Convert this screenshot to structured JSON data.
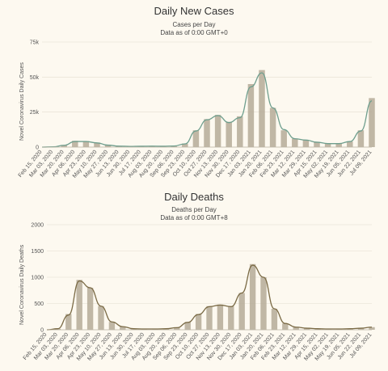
{
  "chart_data": [
    {
      "type": "bar",
      "title": "Daily New Cases",
      "subtitle_lines": [
        "Cases per Day",
        "Data as of 0:00 GMT+0"
      ],
      "ylabel": "Novel Coronavirus Daily Cases",
      "ylim": [
        0,
        75000
      ],
      "yticks": [
        0,
        25000,
        50000,
        75000
      ],
      "ytick_labels": [
        "0",
        "25k",
        "50k",
        "75k"
      ],
      "grid": true,
      "xtick_labels": [
        "Feb 15, 2020",
        "Mar 03, 2020",
        "Mar 20, 2020",
        "Apr 06, 2020",
        "Apr 23, 2020",
        "May 10, 2020",
        "May 27, 2020",
        "Jun 13, 2020",
        "Jun 30, 2020",
        "Jul 17, 2020",
        "Aug 03, 2020",
        "Aug 20, 2020",
        "Sep 06, 2020",
        "Sep 23, 2020",
        "Oct 10, 2020",
        "Oct 27, 2020",
        "Nov 13, 2020",
        "Nov 30, 2020",
        "Dec 17, 2020",
        "Jan 03, 2021",
        "Jan 20, 2021",
        "Feb 06, 2021",
        "Feb 23, 2021",
        "Mar 12, 2021",
        "Mar 29, 2021",
        "Apr 15, 2021",
        "May 02, 2021",
        "May 19, 2021",
        "Jun 05, 2021",
        "Jun 22, 2021",
        "Jul 09, 2021"
      ],
      "x": [
        "Feb 15, 2020",
        "Mar 03, 2020",
        "Mar 20, 2020",
        "Apr 06, 2020",
        "Apr 23, 2020",
        "May 10, 2020",
        "May 27, 2020",
        "Jun 13, 2020",
        "Jun 30, 2020",
        "Jul 17, 2020",
        "Aug 03, 2020",
        "Aug 20, 2020",
        "Sep 06, 2020",
        "Sep 23, 2020",
        "Oct 10, 2020",
        "Oct 27, 2020",
        "Nov 13, 2020",
        "Nov 30, 2020",
        "Dec 17, 2020",
        "Jan 03, 2021",
        "Jan 20, 2021",
        "Feb 06, 2021",
        "Feb 23, 2021",
        "Mar 12, 2021",
        "Mar 29, 2021",
        "Apr 15, 2021",
        "May 02, 2021",
        "May 19, 2021",
        "Jun 05, 2021",
        "Jun 22, 2021",
        "Jul 09, 2021"
      ],
      "series": [
        {
          "values": [
            0,
            200,
            1500,
            4500,
            4200,
            3200,
            1500,
            700,
            500,
            600,
            700,
            600,
            800,
            2500,
            12000,
            20000,
            23000,
            18000,
            22000,
            45000,
            55000,
            28000,
            12000,
            6000,
            5000,
            3500,
            2500,
            2500,
            4000,
            12000,
            35000
          ]
        },
        {
          "values": [
            0,
            200,
            1300,
            4000,
            4000,
            3000,
            1400,
            700,
            500,
            600,
            700,
            600,
            800,
            2300,
            11500,
            19500,
            22500,
            17500,
            21000,
            43000,
            53000,
            28000,
            12500,
            6000,
            5000,
            3500,
            2500,
            2500,
            4000,
            11500,
            33000
          ]
        }
      ],
      "colors": {
        "bars": "#b5ab98",
        "line": "#6e9e8d"
      }
    },
    {
      "type": "bar",
      "title": "Daily Deaths",
      "subtitle_lines": [
        "Deaths per Day",
        "Data as of 0:00 GMT+8"
      ],
      "ylabel": "Novel Coronavirus Daily Deaths",
      "ylim": [
        0,
        2000
      ],
      "yticks": [
        0,
        500,
        1000,
        1500,
        2000
      ],
      "ytick_labels": [
        "0",
        "500",
        "1000",
        "1500",
        "2000"
      ],
      "grid": true,
      "xtick_labels": [
        "Feb 15, 2020",
        "Mar 03, 2020",
        "Mar 20, 2020",
        "Apr 06, 2020",
        "Apr 23, 2020",
        "May 10, 2020",
        "May 27, 2020",
        "Jun 13, 2020",
        "Jun 30, 2020",
        "Jul 17, 2020",
        "Aug 03, 2020",
        "Aug 20, 2020",
        "Sep 06, 2020",
        "Sep 23, 2020",
        "Oct 10, 2020",
        "Oct 27, 2020",
        "Nov 13, 2020",
        "Nov 30, 2020",
        "Dec 17, 2020",
        "Jan 03, 2021",
        "Jan 20, 2021",
        "Feb 06, 2021",
        "Feb 23, 2021",
        "Mar 12, 2021",
        "Mar 29, 2021",
        "Apr 15, 2021",
        "May 02, 2021",
        "May 19, 2021",
        "Jun 05, 2021",
        "Jun 22, 2021",
        "Jul 09, 2021"
      ],
      "x": [
        "Feb 15, 2020",
        "Mar 03, 2020",
        "Mar 20, 2020",
        "Apr 06, 2020",
        "Apr 23, 2020",
        "May 10, 2020",
        "May 27, 2020",
        "Jun 13, 2020",
        "Jun 30, 2020",
        "Jul 17, 2020",
        "Aug 03, 2020",
        "Aug 20, 2020",
        "Sep 06, 2020",
        "Sep 23, 2020",
        "Oct 10, 2020",
        "Oct 27, 2020",
        "Nov 13, 2020",
        "Nov 30, 2020",
        "Dec 17, 2020",
        "Jan 03, 2021",
        "Jan 20, 2021",
        "Feb 06, 2021",
        "Feb 23, 2021",
        "Mar 12, 2021",
        "Mar 29, 2021",
        "Apr 15, 2021",
        "May 02, 2021",
        "May 19, 2021",
        "Jun 05, 2021",
        "Jun 22, 2021",
        "Jul 09, 2021"
      ],
      "series": [
        {
          "values": [
            0,
            20,
            300,
            950,
            800,
            450,
            150,
            60,
            20,
            15,
            15,
            20,
            40,
            150,
            300,
            450,
            480,
            450,
            700,
            1250,
            1000,
            400,
            120,
            50,
            30,
            20,
            15,
            15,
            20,
            30,
            50
          ]
        },
        {
          "values": [
            0,
            20,
            280,
            930,
            800,
            450,
            150,
            60,
            20,
            15,
            15,
            20,
            40,
            140,
            290,
            440,
            470,
            440,
            700,
            1230,
            1000,
            400,
            120,
            50,
            30,
            20,
            15,
            15,
            20,
            30,
            50
          ]
        }
      ],
      "colors": {
        "bars": "#b5ab98",
        "line": "#7a6a45"
      }
    }
  ]
}
